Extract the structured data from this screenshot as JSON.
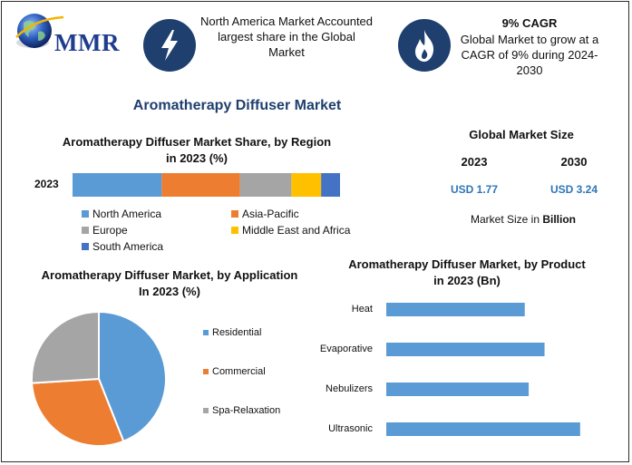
{
  "logo": {
    "text": "MMR"
  },
  "header": {
    "box1": {
      "text": "North America Market Accounted largest share in the Global Market",
      "icon": "lightning-bolt-icon"
    },
    "box2": {
      "title": "9% CAGR",
      "text": "Global Market to grow at a CAGR of 9% during 2024-2030",
      "icon": "flame-icon"
    }
  },
  "main_title": "Aromatherapy Diffuser Market",
  "market_size": {
    "title": "Global Market Size",
    "years": [
      "2023",
      "2030"
    ],
    "values": [
      "USD 1.77",
      "USD 3.24"
    ],
    "unit_note_prefix": "Market Size in ",
    "unit_note_bold": "Billion"
  },
  "colors": {
    "north_america": "#5b9bd5",
    "asia_pacific": "#ed7d31",
    "europe": "#a5a5a5",
    "mea": "#ffc000",
    "south_america": "#4472c4",
    "bar_blue": "#5b9bd5",
    "dark_blue": "#1f3f6e"
  },
  "chart_data": [
    {
      "type": "bar",
      "orientation": "horizontal-stacked",
      "title": "Aromatherapy Diffuser Market Share, by Region in 2023 (%)",
      "categories": [
        "2023"
      ],
      "series": [
        {
          "name": "North America",
          "values": [
            33
          ]
        },
        {
          "name": "Asia-Pacific",
          "values": [
            29
          ]
        },
        {
          "name": "Europe",
          "values": [
            19
          ]
        },
        {
          "name": "Middle East and Africa",
          "values": [
            11
          ]
        },
        {
          "name": "South America",
          "values": [
            7
          ]
        }
      ],
      "legend": "bottom",
      "grid": false
    },
    {
      "type": "pie",
      "title": "Aromatherapy Diffuser Market, by Application In 2023 (%)",
      "categories": [
        "Residential",
        "Commercial",
        "Spa-Relaxation"
      ],
      "values": [
        44,
        30,
        26
      ],
      "legend": "right"
    },
    {
      "type": "bar",
      "orientation": "horizontal",
      "title": "Aromatherapy Diffuser Market, by Product in 2023 (Bn)",
      "categories": [
        "Heat",
        "Evaporative",
        "Nebulizers",
        "Ultrasonic"
      ],
      "values": [
        0.35,
        0.4,
        0.36,
        0.49
      ],
      "xlim": [
        0,
        0.55
      ],
      "grid": false
    }
  ]
}
